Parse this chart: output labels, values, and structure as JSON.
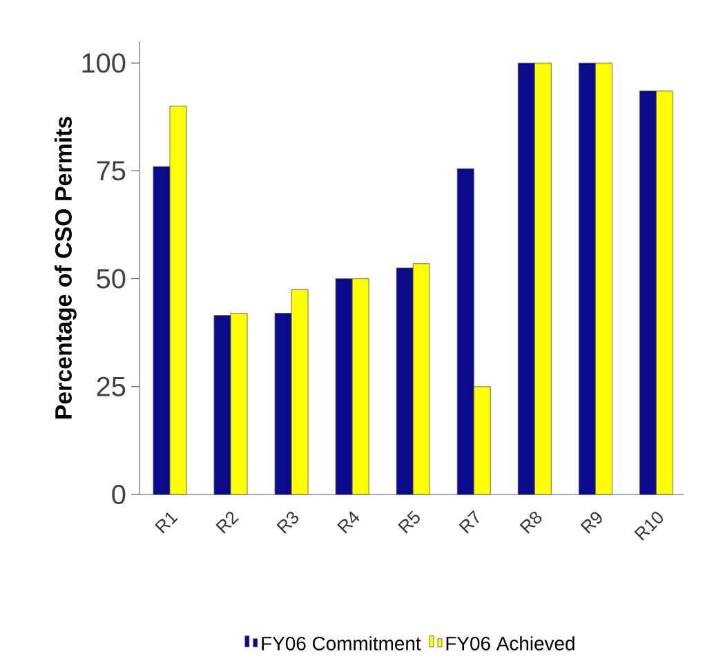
{
  "chart_data": {
    "type": "bar",
    "ylabel": "Percentage of CSO Permits",
    "categories": [
      "R1",
      "R2",
      "R3",
      "R4",
      "R5",
      "R7",
      "R8",
      "R9",
      "R10"
    ],
    "series": [
      {
        "name": "FY06 Commitment",
        "color": "#0a0a8c",
        "values": [
          76,
          41.5,
          42,
          50,
          52.5,
          75.5,
          100,
          100,
          93.5
        ]
      },
      {
        "name": "FY06 Achieved",
        "color": "#ffff00",
        "values": [
          90,
          42,
          47.5,
          50,
          53.5,
          25,
          100,
          100,
          93.5
        ]
      }
    ],
    "ylim": [
      0,
      105
    ],
    "yticks": [
      0,
      25,
      50,
      75,
      100
    ],
    "grid": false,
    "legend": "bottom"
  }
}
